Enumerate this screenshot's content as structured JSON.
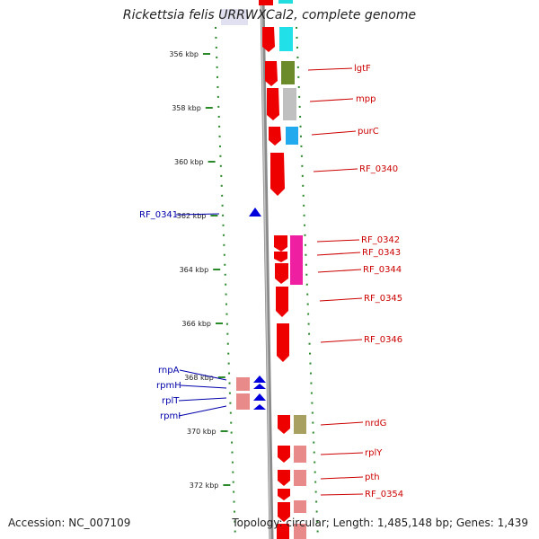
{
  "header": {
    "title": "Rickettsia felis URRWXCal2, complete genome"
  },
  "footer": {
    "accession": "Accession: NC_007109",
    "topology": "Topology: circular; Length: 1,485,148 bp; Genes: 1,439"
  },
  "colors": {
    "gene_red": "#ee0000",
    "gene_pink": "#e88a8a",
    "gene_blue": "#0000dd",
    "tick_green": "#2a8a2a",
    "backbone": "#8a8a8a",
    "label_red": "#cc0000",
    "label_blue": "#0000aa"
  },
  "ruler": {
    "ticks": [
      {
        "label": "356 kbp",
        "kbp": 356
      },
      {
        "label": "358 kbp",
        "kbp": 358
      },
      {
        "label": "360 kbp",
        "kbp": 360
      },
      {
        "label": "362 kbp",
        "kbp": 362
      },
      {
        "label": "364 kbp",
        "kbp": 364
      },
      {
        "label": "366 kbp",
        "kbp": 366
      },
      {
        "label": "368 kbp",
        "kbp": 368
      },
      {
        "label": "370 kbp",
        "kbp": 370
      },
      {
        "label": "372 kbp",
        "kbp": 372
      }
    ]
  },
  "genes": {
    "right": [
      {
        "label": "lgtF",
        "kbp": 356.1
      },
      {
        "label": "mpp",
        "kbp": 357.3
      },
      {
        "label": "purC",
        "kbp": 358.8
      },
      {
        "label": "RF_0340",
        "kbp": 360.2
      },
      {
        "label": "RF_0342",
        "kbp": 362.9
      },
      {
        "label": "RF_0343",
        "kbp": 363.4
      },
      {
        "label": "RF_0344",
        "kbp": 364.0
      },
      {
        "label": "RF_0345",
        "kbp": 365.1
      },
      {
        "label": "RF_0346",
        "kbp": 366.6
      },
      {
        "label": "nrdG",
        "kbp": 369.6
      },
      {
        "label": "rplY",
        "kbp": 370.8
      },
      {
        "label": "pth",
        "kbp": 371.7
      },
      {
        "label": "RF_0354",
        "kbp": 372.3
      }
    ],
    "left": [
      {
        "label": "RF_0341",
        "kbp": 362.0
      },
      {
        "label": "rnpA",
        "kbp": 367.8
      },
      {
        "label": "rpmH",
        "kbp": 368.3
      },
      {
        "label": "rplT",
        "kbp": 368.8
      },
      {
        "label": "rpmI",
        "kbp": 369.3
      }
    ]
  }
}
